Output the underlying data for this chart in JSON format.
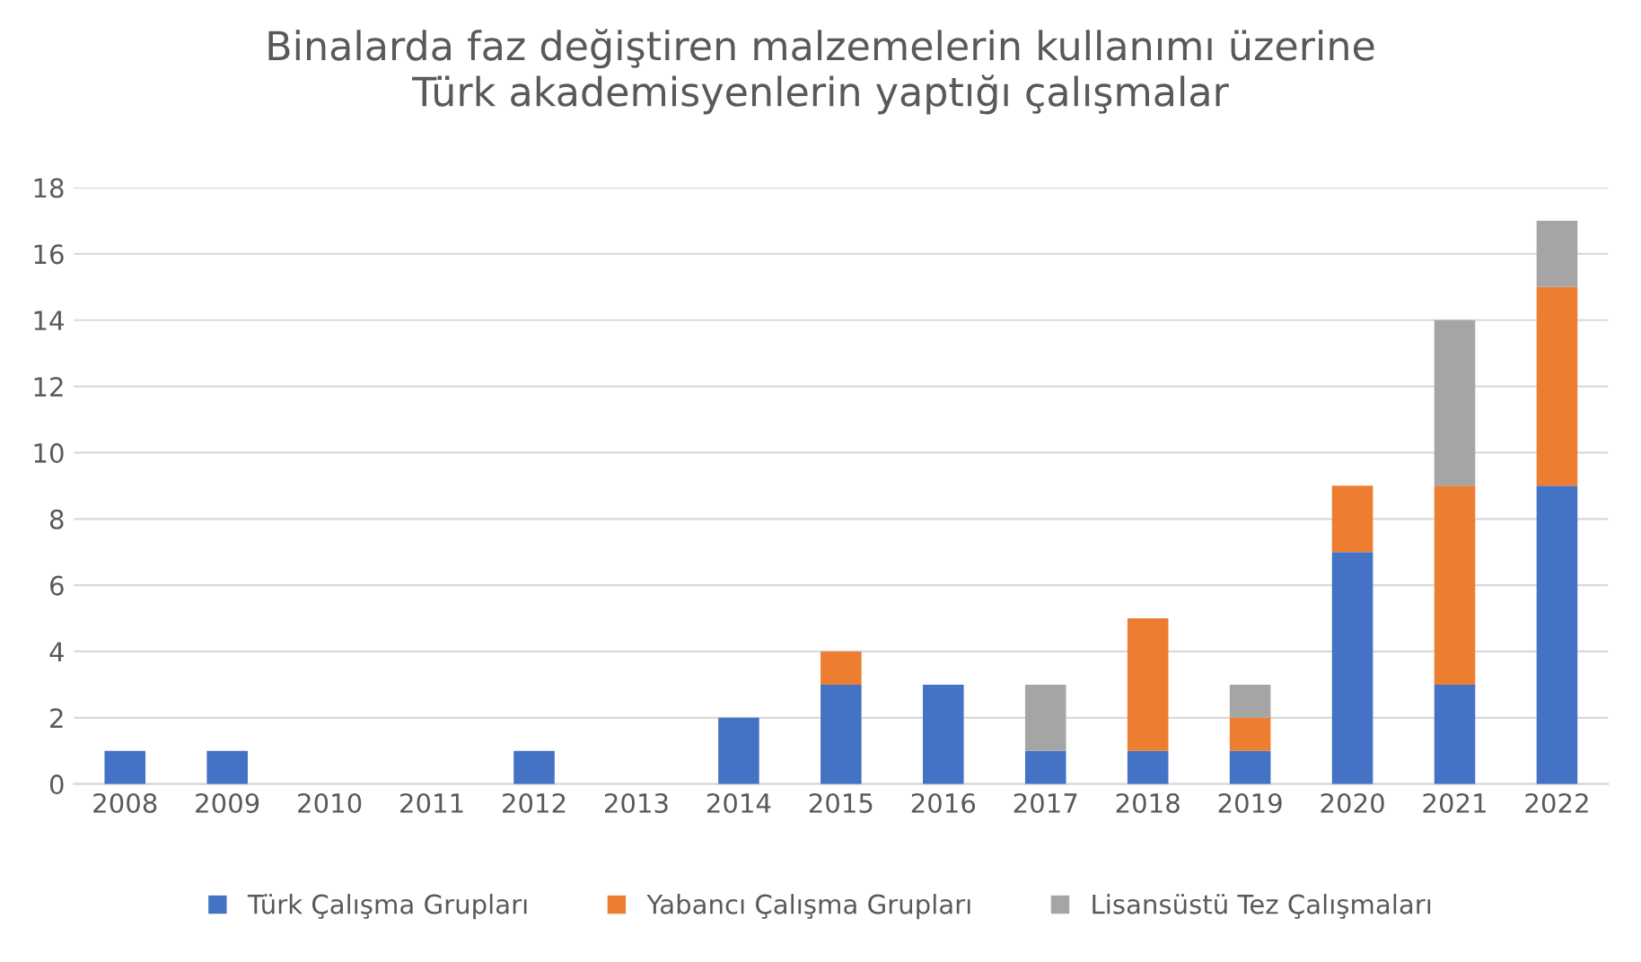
{
  "chart_data": {
    "type": "bar",
    "title": "Binalarda faz değiştiren malzemelerin kullanımı üzerine\nTürk akademisyenlerin yaptığı çalışmalar",
    "categories": [
      "2008",
      "2009",
      "2010",
      "2011",
      "2012",
      "2013",
      "2014",
      "2015",
      "2016",
      "2017",
      "2018",
      "2019",
      "2020",
      "2021",
      "2022"
    ],
    "stacked": true,
    "series": [
      {
        "name": "Türk Çalışma Grupları",
        "color": "#4472c4",
        "values": [
          1,
          1,
          0,
          0,
          1,
          0,
          2,
          3,
          3,
          1,
          1,
          1,
          7,
          3,
          9
        ]
      },
      {
        "name": "Yabancı Çalışma Grupları",
        "color": "#ed7d31",
        "values": [
          0,
          0,
          0,
          0,
          0,
          0,
          0,
          1,
          0,
          0,
          4,
          1,
          2,
          6,
          6
        ]
      },
      {
        "name": "Lisansüstü Tez Çalışmaları",
        "color": "#a5a5a5",
        "values": [
          0,
          0,
          0,
          0,
          0,
          0,
          0,
          0,
          0,
          2,
          0,
          1,
          0,
          5,
          2
        ]
      }
    ],
    "ylim": [
      0,
      18
    ],
    "yticks": [
      0,
      2,
      4,
      6,
      8,
      10,
      12,
      14,
      16,
      18
    ],
    "grid": "y",
    "legend": "bottom"
  }
}
